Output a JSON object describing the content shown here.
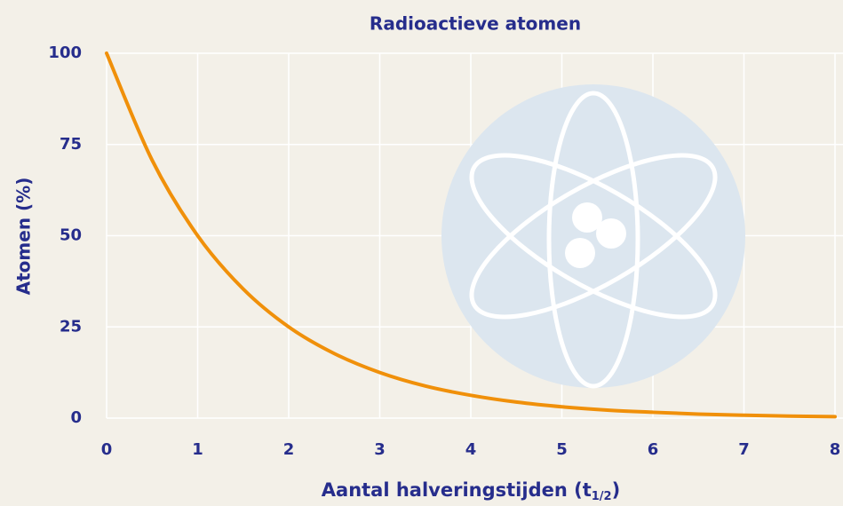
{
  "chart_data": {
    "type": "line",
    "title": "Radioactieve atomen",
    "xlabel": [
      "Aantal halveringstijden (t",
      "1/2",
      ")"
    ],
    "ylabel": "Atomen (%)",
    "x": [
      0,
      0.5,
      1,
      1.5,
      2,
      2.5,
      3,
      3.5,
      4,
      4.5,
      5,
      5.5,
      6,
      6.5,
      7,
      7.5,
      8
    ],
    "series": [
      {
        "color": "#f0900a",
        "values": [
          100,
          70.7,
          50,
          35.4,
          25,
          17.7,
          12.5,
          8.8,
          6.25,
          4.4,
          3.1,
          2.2,
          1.6,
          1.1,
          0.8,
          0.55,
          0.4
        ]
      }
    ],
    "xlim": [
      0,
      8
    ],
    "xticks": [
      0,
      1,
      2,
      3,
      4,
      5,
      6,
      7,
      8
    ],
    "ylim": [
      0,
      100
    ],
    "yticks": [
      0,
      25,
      50,
      75,
      100
    ],
    "grid": true
  }
}
